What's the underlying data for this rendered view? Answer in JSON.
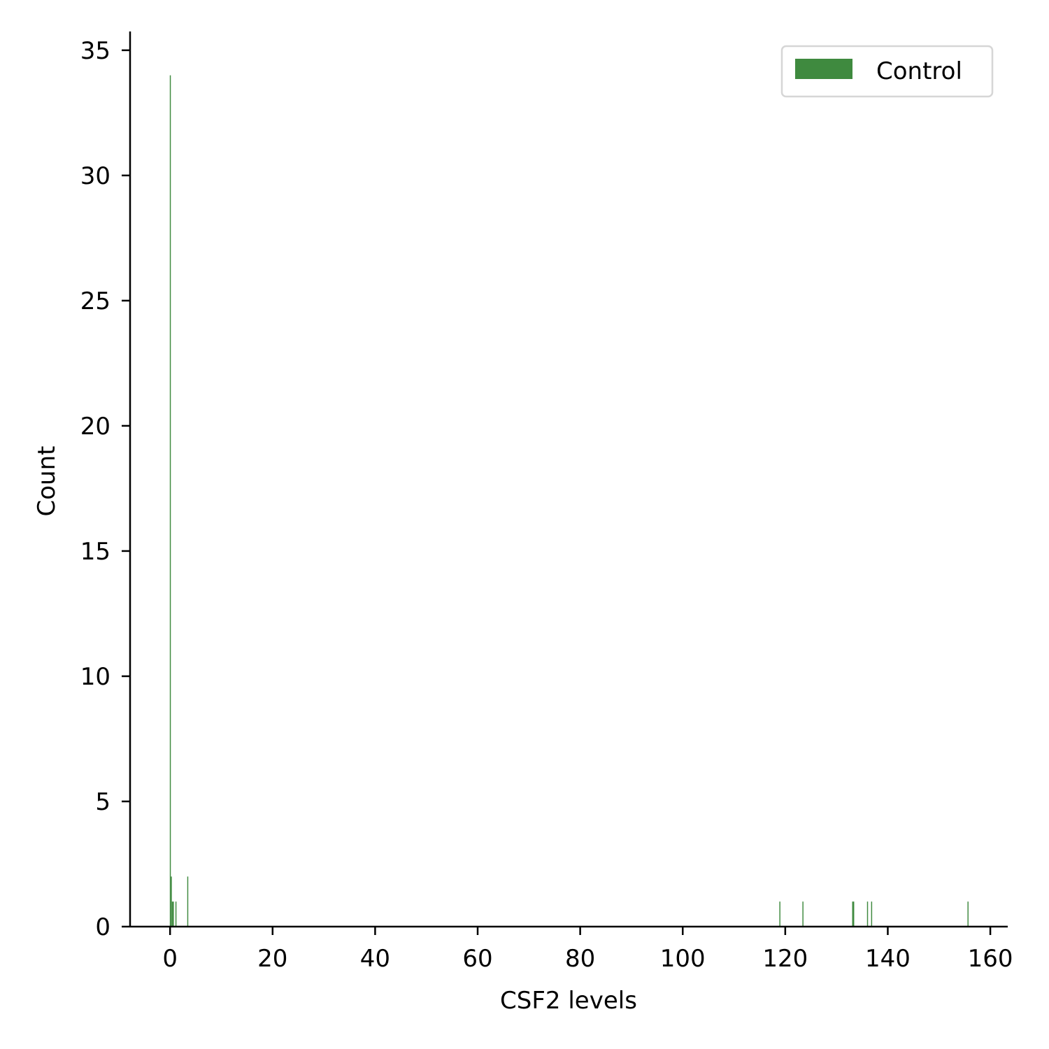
{
  "chart_data": {
    "type": "bar",
    "subtype": "histogram",
    "title": "",
    "xlabel": "CSF2 levels",
    "ylabel": "Count",
    "xlim": [
      -7.8,
      163.4
    ],
    "ylim": [
      0,
      35.75
    ],
    "xticks": [
      0,
      20,
      40,
      60,
      80,
      100,
      120,
      140,
      160
    ],
    "yticks": [
      0,
      5,
      10,
      15,
      20,
      25,
      30,
      35
    ],
    "grid": false,
    "legend": {
      "position": "top-right",
      "entries": [
        "Control"
      ]
    },
    "series": [
      {
        "name": "Control",
        "color": "#3f8a3f",
        "bins": [
          {
            "x": 0.05,
            "count": 34
          },
          {
            "x": 0.25,
            "count": 2
          },
          {
            "x": 0.45,
            "count": 1
          },
          {
            "x": 0.65,
            "count": 1
          },
          {
            "x": 1.15,
            "count": 1
          },
          {
            "x": 3.45,
            "count": 2
          },
          {
            "x": 118.95,
            "count": 1
          },
          {
            "x": 123.45,
            "count": 1
          },
          {
            "x": 133.15,
            "count": 1
          },
          {
            "x": 133.35,
            "count": 1
          },
          {
            "x": 136.05,
            "count": 1
          },
          {
            "x": 136.85,
            "count": 1
          },
          {
            "x": 155.65,
            "count": 1
          }
        ]
      }
    ]
  }
}
